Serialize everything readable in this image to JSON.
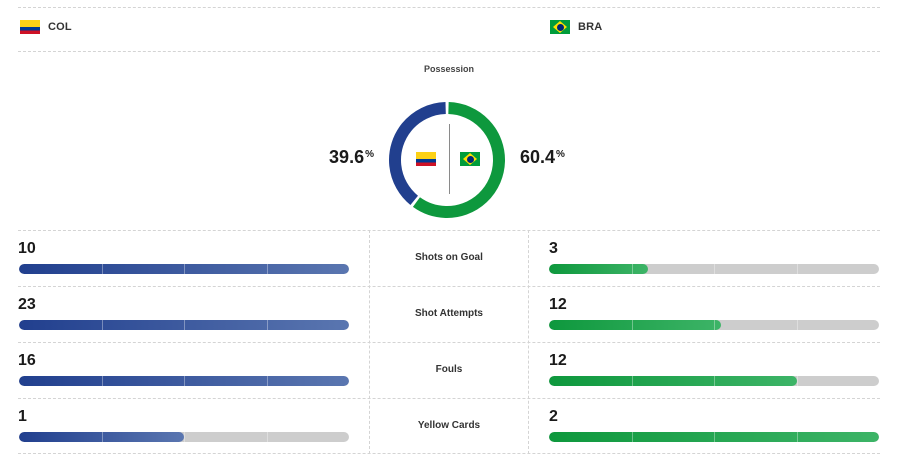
{
  "teams": {
    "home": {
      "abbr": "COL",
      "flag": "colombia-flag",
      "color": "#213f8e"
    },
    "away": {
      "abbr": "BRA",
      "flag": "brazil-flag",
      "color": "#0e983d"
    }
  },
  "possession": {
    "title": "Possession",
    "home_value": "39.6",
    "away_value": "60.4",
    "unit": "%",
    "home_fraction": 0.396,
    "away_fraction": 0.604
  },
  "stats": [
    {
      "label": "Shots on Goal",
      "home": "10",
      "away": "3",
      "home_fill": 1.0,
      "away_fill": 0.3
    },
    {
      "label": "Shot Attempts",
      "home": "23",
      "away": "12",
      "home_fill": 1.0,
      "away_fill": 0.52
    },
    {
      "label": "Fouls",
      "home": "16",
      "away": "12",
      "home_fill": 1.0,
      "away_fill": 0.75
    },
    {
      "label": "Yellow Cards",
      "home": "1",
      "away": "2",
      "home_fill": 0.5,
      "away_fill": 1.0
    }
  ]
}
